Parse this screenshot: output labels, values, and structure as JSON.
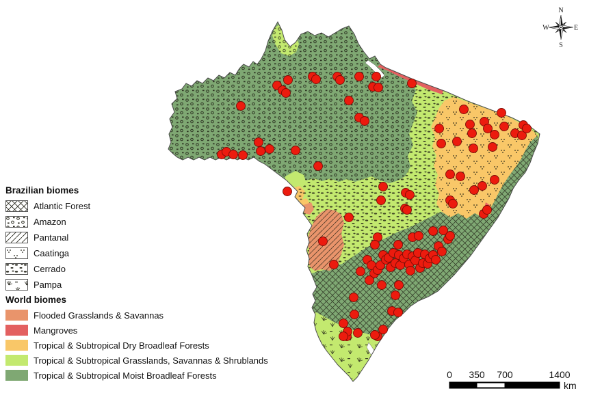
{
  "legend": {
    "brazilian_biomes": {
      "title": "Brazilian biomes",
      "items": [
        {
          "label": "Atlantic Forest",
          "pattern": "crosshatch"
        },
        {
          "label": "Amazon",
          "pattern": "dense-scatter"
        },
        {
          "label": "Pantanal",
          "pattern": "diagonal-lines"
        },
        {
          "label": "Caatinga",
          "pattern": "sparse-dots"
        },
        {
          "label": "Cerrado",
          "pattern": "dense-dashes"
        },
        {
          "label": "Pampa",
          "pattern": "grass-tufts"
        }
      ]
    },
    "world_biomes": {
      "title": "World biomes",
      "items": [
        {
          "label": "Flooded Grasslands & Savannas",
          "color": "#E9946B"
        },
        {
          "label": "Mangroves",
          "color": "#E36060"
        },
        {
          "label": "Tropical & Subtropical Dry Broadleaf Forests",
          "color": "#F9C768"
        },
        {
          "label": "Tropical & Subtropical Grasslands, Savannas & Shrublands",
          "color": "#C3E96F"
        },
        {
          "label": "Tropical & Subtropical Moist Broadleaf Forests",
          "color": "#7FA873"
        }
      ]
    }
  },
  "compass": {
    "north": "N",
    "south": "S",
    "east": "E",
    "west": "W"
  },
  "scale_bar": {
    "ticks": [
      "0",
      "350",
      "700",
      "1400"
    ],
    "unit": "km"
  },
  "map": {
    "outline_color": "#4a4a4a",
    "water_color": "#ffffff"
  },
  "samples": {
    "color": "#EC1B0E",
    "stroke": "#7A0C06",
    "radius": 6.5,
    "points": [
      [
        324,
        226
      ],
      [
        331,
        222
      ],
      [
        341,
        226
      ],
      [
        352,
        155
      ],
      [
        355,
        227
      ],
      [
        378,
        208
      ],
      [
        381,
        221
      ],
      [
        394,
        218
      ],
      [
        405,
        125
      ],
      [
        413,
        132
      ],
      [
        418,
        136
      ],
      [
        421,
        117
      ],
      [
        420,
        280
      ],
      [
        432,
        220
      ],
      [
        457,
        112
      ],
      [
        462,
        116
      ],
      [
        465,
        243
      ],
      [
        493,
        112
      ],
      [
        497,
        117
      ],
      [
        510,
        147
      ],
      [
        525,
        112
      ],
      [
        525,
        172
      ],
      [
        533,
        177
      ],
      [
        545,
        127
      ],
      [
        550,
        112
      ],
      [
        553,
        128
      ],
      [
        560,
        273
      ],
      [
        557,
        293
      ],
      [
        593,
        282
      ],
      [
        599,
        285
      ],
      [
        592,
        305
      ],
      [
        595,
        307
      ],
      [
        602,
        122
      ],
      [
        642,
        188
      ],
      [
        645,
        210
      ],
      [
        658,
        255
      ],
      [
        673,
        258
      ],
      [
        668,
        207
      ],
      [
        678,
        160
      ],
      [
        687,
        182
      ],
      [
        708,
        178
      ],
      [
        713,
        188
      ],
      [
        690,
        195
      ],
      [
        692,
        217
      ],
      [
        705,
        272
      ],
      [
        707,
        313
      ],
      [
        712,
        307
      ],
      [
        720,
        215
      ],
      [
        723,
        263
      ],
      [
        733,
        165
      ],
      [
        737,
        185
      ],
      [
        753,
        195
      ],
      [
        763,
        198
      ],
      [
        765,
        183
      ],
      [
        770,
        188
      ],
      [
        693,
        278
      ],
      [
        723,
        197
      ],
      [
        658,
        293
      ],
      [
        662,
        298
      ],
      [
        510,
        318
      ],
      [
        552,
        347
      ],
      [
        548,
        358
      ],
      [
        603,
        347
      ],
      [
        612,
        345
      ],
      [
        633,
        338
      ],
      [
        648,
        337
      ],
      [
        537,
        380
      ],
      [
        543,
        388
      ],
      [
        547,
        400
      ],
      [
        552,
        395
      ],
      [
        556,
        388
      ],
      [
        560,
        373
      ],
      [
        564,
        380
      ],
      [
        568,
        377
      ],
      [
        571,
        391
      ],
      [
        575,
        370
      ],
      [
        578,
        385
      ],
      [
        582,
        358
      ],
      [
        583,
        373
      ],
      [
        585,
        388
      ],
      [
        590,
        378
      ],
      [
        595,
        372
      ],
      [
        598,
        387
      ],
      [
        600,
        396
      ],
      [
        603,
        375
      ],
      [
        607,
        381
      ],
      [
        611,
        370
      ],
      [
        614,
        392
      ],
      [
        618,
        385
      ],
      [
        621,
        372
      ],
      [
        625,
        386
      ],
      [
        628,
        378
      ],
      [
        633,
        373
      ],
      [
        637,
        380
      ],
      [
        641,
        360
      ],
      [
        646,
        368
      ],
      [
        655,
        350
      ],
      [
        658,
        345
      ],
      [
        472,
        353
      ],
      [
        488,
        387
      ],
      [
        527,
        397
      ],
      [
        540,
        410
      ],
      [
        558,
        417
      ],
      [
        578,
        432
      ],
      [
        583,
        417
      ],
      [
        573,
        455
      ],
      [
        582,
        457
      ],
      [
        517,
        435
      ],
      [
        502,
        473
      ],
      [
        507,
        492
      ],
      [
        508,
        485
      ],
      [
        523,
        487
      ],
      [
        502,
        492
      ],
      [
        518,
        460
      ],
      [
        552,
        492
      ],
      [
        560,
        482
      ],
      [
        548,
        490
      ]
    ]
  }
}
